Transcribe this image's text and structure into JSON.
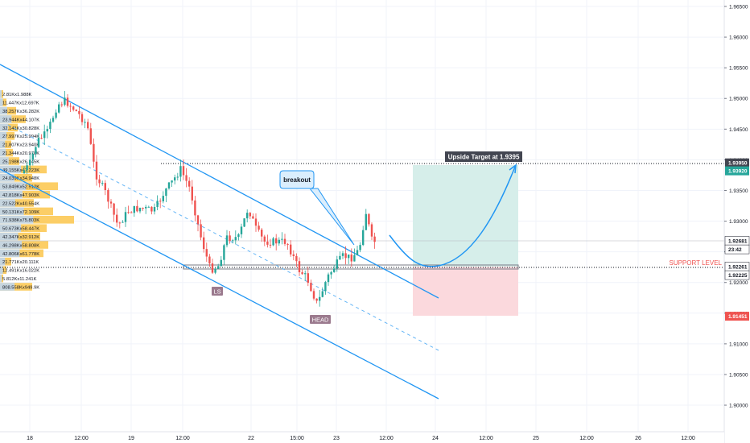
{
  "price_axis": {
    "labels": [
      {
        "price": 1.965,
        "text": "1.96500"
      },
      {
        "price": 1.96,
        "text": "1.96000"
      },
      {
        "price": 1.955,
        "text": "1.95500"
      },
      {
        "price": 1.95,
        "text": "1.95000"
      },
      {
        "price": 1.945,
        "text": "1.94500"
      },
      {
        "price": 1.94,
        "text": "1.94000"
      },
      {
        "price": 1.935,
        "text": "1.93500"
      },
      {
        "price": 1.93,
        "text": "1.93000"
      },
      {
        "price": 1.925,
        "text": "1.92500"
      },
      {
        "price": 1.92,
        "text": "1.92000"
      },
      {
        "price": 1.915,
        "text": "1.91500"
      },
      {
        "price": 1.91,
        "text": "1.91000"
      },
      {
        "price": 1.905,
        "text": "1.90500"
      },
      {
        "price": 1.9,
        "text": "1.90000"
      }
    ],
    "badges": [
      {
        "price": 1.9395,
        "text": "1.93950",
        "bg": "#434651",
        "fg": "#ffffff"
      },
      {
        "price": 1.9382,
        "text": "1.93920",
        "bg": "#26a69a",
        "fg": "#ffffff"
      },
      {
        "price": 1.9268,
        "text": "1.92681",
        "bg": "#ffffff",
        "fg": "#131722",
        "border": "#131722"
      },
      {
        "price": 1.9254,
        "text": "23:42",
        "bg": "#ffffff",
        "fg": "#131722",
        "border": "#131722"
      },
      {
        "price": 1.9226,
        "text": "1.92261",
        "bg": "#ffffff",
        "fg": "#131722",
        "border": "#131722"
      },
      {
        "price": 1.9212,
        "text": "1.92225",
        "bg": "#ffffff",
        "fg": "#131722",
        "border": "#131722"
      },
      {
        "price": 1.9145,
        "text": "1.91451",
        "bg": "#ef5350",
        "fg": "#ffffff"
      }
    ]
  },
  "time_axis": [
    "18",
    "12:00",
    "19",
    "12:00",
    "22",
    "15:00",
    "23",
    "12:00",
    "24",
    "12:00",
    "25",
    "12:00",
    "26",
    "12:00"
  ],
  "annotations": {
    "upside_target": "Upside Target at 1.9395",
    "breakout": "breakout",
    "support_level": "SUPPORT LEVEL",
    "left_shoulder": "LS",
    "head": "HEAD"
  },
  "volume_profile": [
    "2.81Kx1.988K",
    "11.447Kx12.697K",
    "38.257Kx36.282K",
    "23.944Kx44.107K",
    "32.141Kx30.828K",
    "27.997Kx25.994K",
    "21.807Kx23.940K",
    "21.344Kx20.978K",
    "25.198Kx26.245K",
    "49.155Kx47.223K",
    "24.039Kx34.948K",
    "53.849Kx52.512K",
    "42.818Kx47.903K",
    "22.522Kx40.554K",
    "50.131Kx72.109K",
    "71.938Kx75.803K",
    "50.673Kx58.447K",
    "42.347Kx32.912K",
    "46.298Kx58.808K",
    "42.806Kx61.778K",
    "21.771Kx20.111K",
    "12.491Kx16.022K",
    "5.812Kx11.241K",
    "808.558Kx949.9K"
  ],
  "colors": {
    "up_candle": "#26a69a",
    "down_candle": "#ef5350",
    "channel": "#2196f3",
    "target_zone": "#d6eeea",
    "stop_zone": "#fbd9dd",
    "support_text": "#ef5350",
    "vp_fill": "#fbc54b",
    "vp_fill_light": "#bcd6f4"
  }
}
